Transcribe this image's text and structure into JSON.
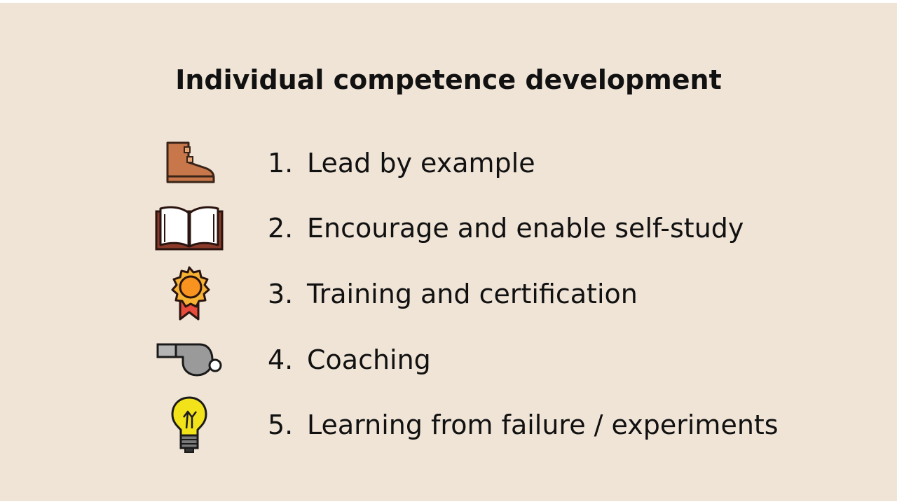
{
  "title": "Individual competence development",
  "items": [
    {
      "number": "1.",
      "label": "Lead by example",
      "icon": "boot-icon"
    },
    {
      "number": "2.",
      "label": "Encourage and enable self-study",
      "icon": "open-book-icon"
    },
    {
      "number": "3.",
      "label": "Training and certification",
      "icon": "award-medal-icon"
    },
    {
      "number": "4.",
      "label": "Coaching",
      "icon": "whistle-icon"
    },
    {
      "number": "5.",
      "label": "Learning from failure / experiments",
      "icon": "light-bulb-icon"
    }
  ],
  "colors": {
    "background": "#f0e4d7",
    "text": "#111111",
    "boot": "#c8774a",
    "medal": "#f7931e",
    "ribbon": "#e84a3b",
    "whistle": "#9a9a9a",
    "bulb": "#f2e21a"
  }
}
